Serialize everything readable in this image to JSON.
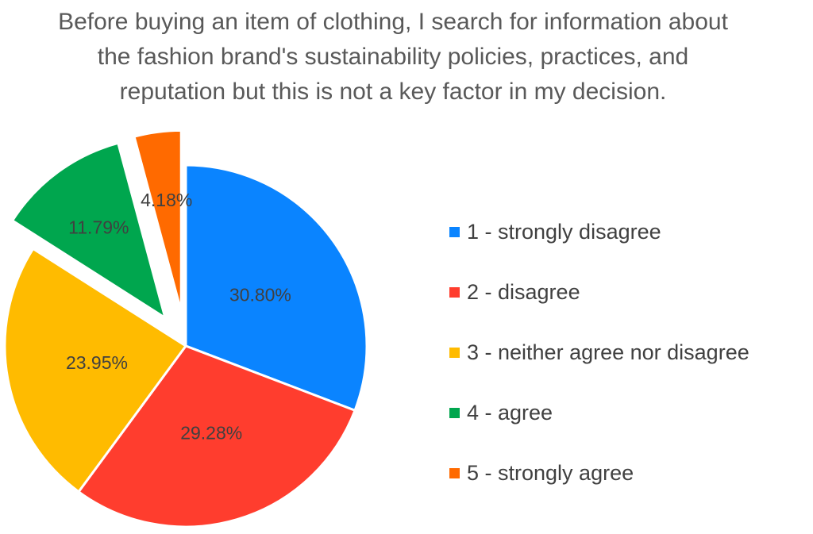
{
  "chart_data": {
    "type": "pie",
    "title_lines": [
      "Before buying an item of clothing, I search for information about",
      "the fashion brand's sustainability policies, practices, and",
      "reputation but this is not a key factor in my decision."
    ],
    "slices": [
      {
        "label": "1 -  strongly disagree",
        "value": 30.8,
        "value_label": "30.80%",
        "color": "#0a84ff",
        "exploded": false
      },
      {
        "label": "2 -  disagree",
        "value": 29.28,
        "value_label": "29.28%",
        "color": "#ff3d2e",
        "exploded": false
      },
      {
        "label": "3 -  neither agree nor disagree",
        "value": 23.95,
        "value_label": "23.95%",
        "color": "#ffbb00",
        "exploded": false
      },
      {
        "label": "4 -  agree",
        "value": 11.79,
        "value_label": "11.79%",
        "color": "#00a64e",
        "exploded": true
      },
      {
        "label": "5 -  strongly agree",
        "value": 4.18,
        "value_label": "4.18%",
        "color": "#ff6a00",
        "exploded": true
      }
    ],
    "legend_position": "right"
  }
}
